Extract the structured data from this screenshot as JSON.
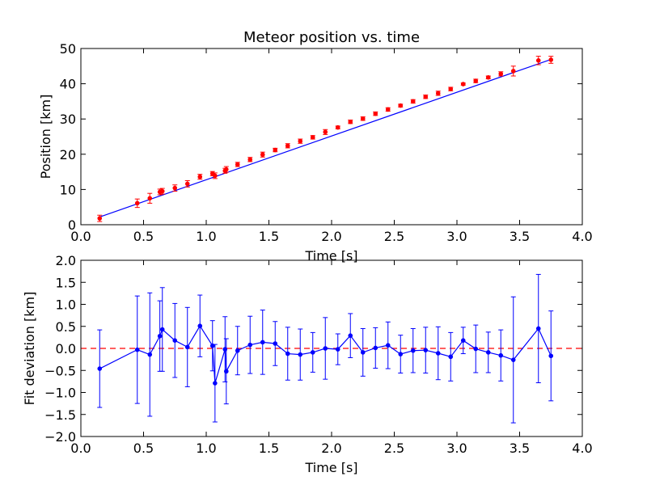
{
  "chart_data": [
    {
      "type": "line",
      "title": "Meteor position vs. time",
      "xlabel": "Time [s]",
      "ylabel": "Position [km]",
      "xlim": [
        0.0,
        4.0
      ],
      "ylim": [
        0,
        50
      ],
      "x_ticks": [
        "0.0",
        "0.5",
        "1.0",
        "1.5",
        "2.0",
        "2.5",
        "3.0",
        "3.5",
        "4.0"
      ],
      "y_ticks": [
        "0",
        "10",
        "20",
        "30",
        "40",
        "50"
      ],
      "grid": false,
      "fit_line": {
        "x": [
          0.15,
          3.75
        ],
        "y": [
          2.2,
          46.9
        ],
        "color": "#0000ff"
      },
      "series": [
        {
          "marker_color": "#ff0000",
          "errorbar_color": "#ff0000",
          "x": [
            0.15,
            0.45,
            0.55,
            0.63,
            0.65,
            0.75,
            0.85,
            0.95,
            1.05,
            1.07,
            1.15,
            1.16,
            1.25,
            1.35,
            1.45,
            1.55,
            1.65,
            1.75,
            1.85,
            1.95,
            2.05,
            2.15,
            2.25,
            2.35,
            2.45,
            2.55,
            2.65,
            2.75,
            2.85,
            2.95,
            3.05,
            3.15,
            3.25,
            3.35,
            3.45,
            3.65,
            3.75
          ],
          "y": [
            1.8,
            6.1,
            7.5,
            9.3,
            9.5,
            10.4,
            11.6,
            13.6,
            14.5,
            13.9,
            15.3,
            15.7,
            17.1,
            18.5,
            19.9,
            21.2,
            22.4,
            23.7,
            24.8,
            26.3,
            27.6,
            29.2,
            30.1,
            31.5,
            32.7,
            33.8,
            35.0,
            36.3,
            37.3,
            38.5,
            39.9,
            40.8,
            41.8,
            42.8,
            43.6,
            46.6,
            46.8
          ],
          "yerr": [
            0.9,
            1.2,
            1.4,
            0.8,
            0.8,
            0.9,
            0.9,
            0.7,
            0.6,
            0.8,
            0.7,
            0.8,
            0.6,
            0.6,
            0.7,
            0.5,
            0.6,
            0.6,
            0.5,
            0.7,
            0.4,
            0.5,
            0.5,
            0.5,
            0.5,
            0.4,
            0.5,
            0.5,
            0.6,
            0.5,
            0.3,
            0.5,
            0.4,
            0.6,
            1.4,
            1.2,
            1.0
          ]
        }
      ]
    },
    {
      "type": "line",
      "title": "",
      "xlabel": "Time [s]",
      "ylabel": "Fit deviation [km]",
      "xlim": [
        0.0,
        4.0
      ],
      "ylim": [
        -2.0,
        2.0
      ],
      "x_ticks": [
        "0.0",
        "0.5",
        "1.0",
        "1.5",
        "2.0",
        "2.5",
        "3.0",
        "3.5",
        "4.0"
      ],
      "y_ticks": [
        "−2.0",
        "−1.5",
        "−1.0",
        "−0.5",
        "0.0",
        "0.5",
        "1.0",
        "1.5",
        "2.0"
      ],
      "grid": false,
      "zero_line": {
        "y": 0.0,
        "color": "#ff0000",
        "style": "dashed"
      },
      "series": [
        {
          "color": "#0000ff",
          "x": [
            0.15,
            0.45,
            0.55,
            0.63,
            0.65,
            0.75,
            0.85,
            0.95,
            1.05,
            1.07,
            1.15,
            1.16,
            1.25,
            1.35,
            1.45,
            1.55,
            1.65,
            1.75,
            1.85,
            1.95,
            2.05,
            2.15,
            2.25,
            2.35,
            2.45,
            2.55,
            2.65,
            2.75,
            2.85,
            2.95,
            3.05,
            3.15,
            3.25,
            3.35,
            3.45,
            3.65,
            3.75
          ],
          "y": [
            -0.46,
            -0.03,
            -0.14,
            0.28,
            0.43,
            0.18,
            0.03,
            0.51,
            0.06,
            -0.79,
            -0.02,
            -0.52,
            -0.05,
            0.08,
            0.14,
            0.11,
            -0.12,
            -0.14,
            -0.09,
            0.0,
            -0.02,
            0.29,
            -0.09,
            0.01,
            0.07,
            -0.13,
            -0.05,
            -0.04,
            -0.11,
            -0.19,
            0.18,
            -0.01,
            -0.09,
            -0.16,
            -0.26,
            0.45,
            -0.17
          ],
          "yerr": [
            0.88,
            1.22,
            1.4,
            0.8,
            0.95,
            0.84,
            0.9,
            0.7,
            0.57,
            0.88,
            0.74,
            0.74,
            0.55,
            0.65,
            0.73,
            0.5,
            0.6,
            0.58,
            0.45,
            0.7,
            0.35,
            0.5,
            0.54,
            0.46,
            0.53,
            0.43,
            0.5,
            0.52,
            0.6,
            0.55,
            0.3,
            0.54,
            0.46,
            0.58,
            1.43,
            1.23,
            1.02
          ]
        }
      ]
    }
  ]
}
